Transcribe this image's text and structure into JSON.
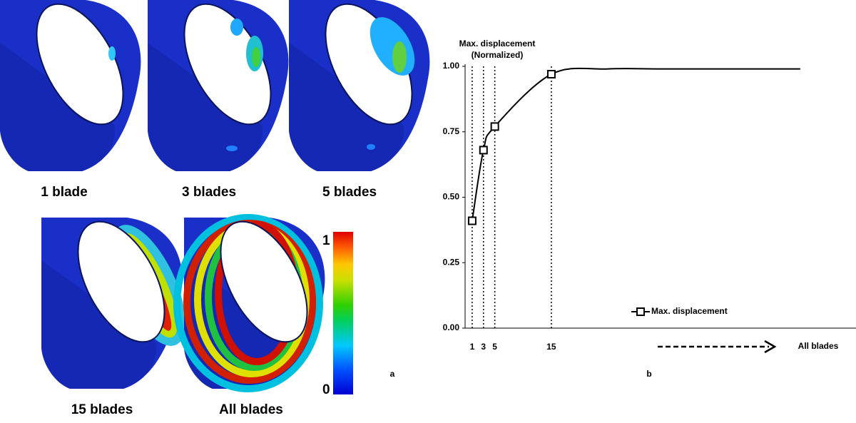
{
  "panels": {
    "labels": [
      "1 blade",
      "3 blades",
      "5 blades",
      "15 blades",
      "All blades"
    ],
    "colorbar": {
      "max": 1,
      "min": 0
    },
    "panel_label": "a"
  },
  "chart_data": {
    "type": "line",
    "panel_label": "b",
    "y_label": [
      "Max. displacement",
      "(Normalized)"
    ],
    "x": [
      1,
      3,
      5,
      15,
      25,
      35,
      50,
      59
    ],
    "series": [
      {
        "name": "Max. displacement",
        "color": "#000000",
        "values": [
          0.41,
          0.68,
          0.77,
          0.97,
          0.99,
          0.99,
          0.99,
          0.99
        ]
      }
    ],
    "xlim": [
      -0.25,
      68.85
    ],
    "xticks": [
      1,
      3,
      5,
      15
    ],
    "ylim": [
      0,
      1
    ],
    "yticks": [
      {
        "value": 0,
        "label": "0.00"
      },
      {
        "value": 0.25,
        "label": "0.25"
      },
      {
        "value": 0.5,
        "label": "0.50"
      },
      {
        "value": 0.75,
        "label": "0.75"
      },
      {
        "value": 1,
        "label": "1.00"
      }
    ],
    "annotation": "All blades",
    "legend": "lower right",
    "marker": "square"
  }
}
